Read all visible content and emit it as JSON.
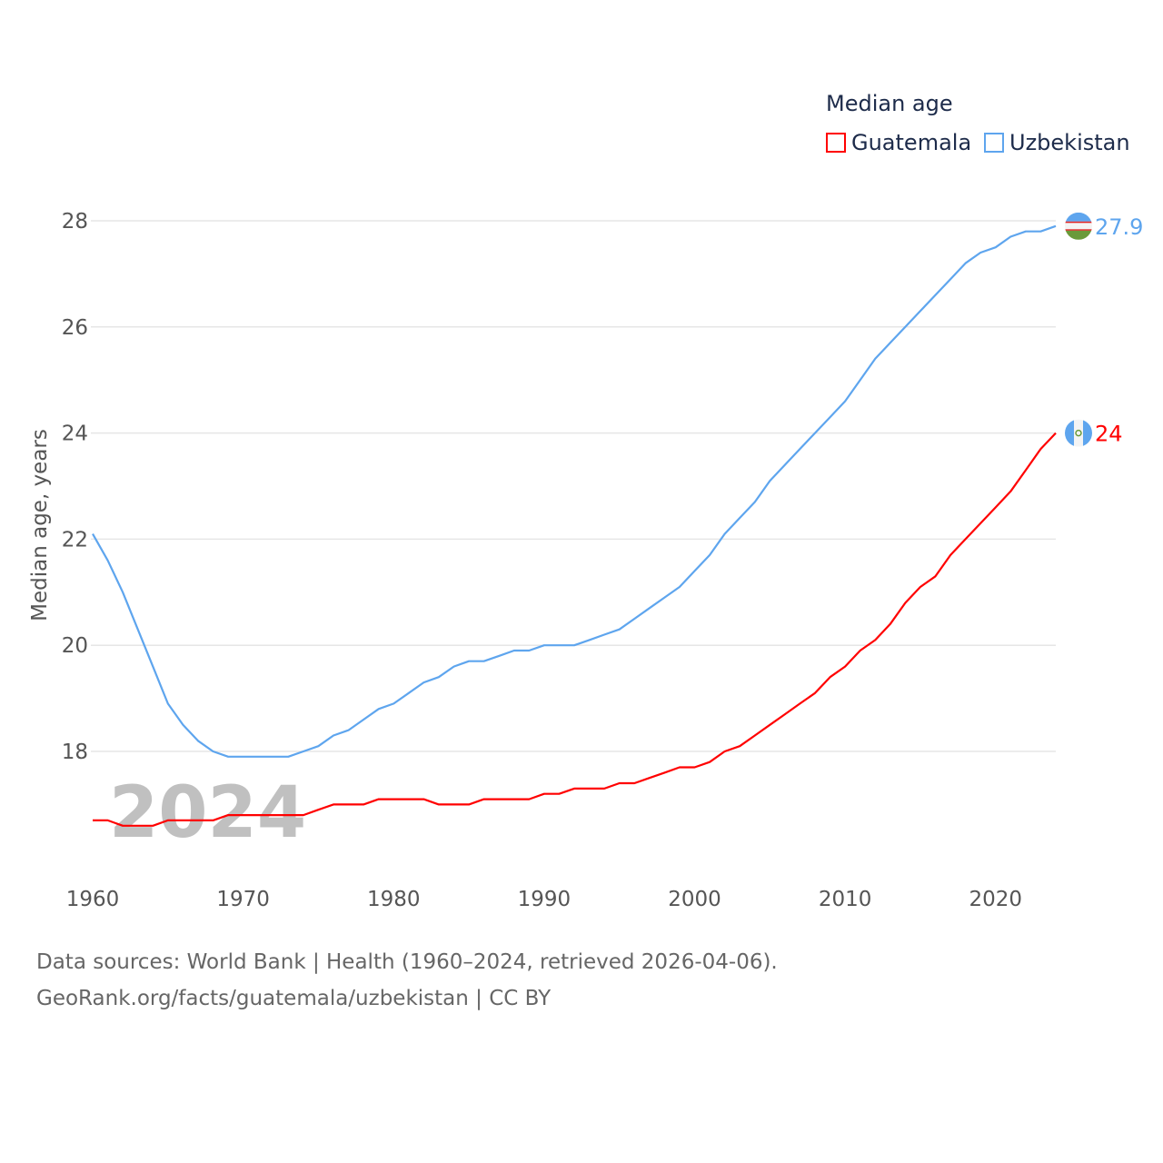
{
  "chart_data": {
    "type": "line",
    "title": "Median age",
    "xlabel": "",
    "ylabel": "Median age, years",
    "xlim": [
      1960,
      2024
    ],
    "ylim": [
      16.0,
      28.5
    ],
    "x_ticks": [
      1960,
      1970,
      1980,
      1990,
      2000,
      2010,
      2020
    ],
    "y_ticks": [
      18,
      20,
      22,
      24,
      26,
      28
    ],
    "grid": true,
    "legend_position": "top-right",
    "year_watermark": "2024",
    "x": [
      1960,
      1961,
      1962,
      1963,
      1964,
      1965,
      1966,
      1967,
      1968,
      1969,
      1970,
      1971,
      1972,
      1973,
      1974,
      1975,
      1976,
      1977,
      1978,
      1979,
      1980,
      1981,
      1982,
      1983,
      1984,
      1985,
      1986,
      1987,
      1988,
      1989,
      1990,
      1991,
      1992,
      1993,
      1994,
      1995,
      1996,
      1997,
      1998,
      1999,
      2000,
      2001,
      2002,
      2003,
      2004,
      2005,
      2006,
      2007,
      2008,
      2009,
      2010,
      2011,
      2012,
      2013,
      2014,
      2015,
      2016,
      2017,
      2018,
      2019,
      2020,
      2021,
      2022,
      2023,
      2024
    ],
    "series": [
      {
        "name": "Guatemala",
        "color": "#ff0000",
        "end_label": "24",
        "values": [
          16.7,
          16.7,
          16.6,
          16.6,
          16.6,
          16.7,
          16.7,
          16.7,
          16.7,
          16.8,
          16.8,
          16.8,
          16.8,
          16.8,
          16.8,
          16.9,
          17.0,
          17.0,
          17.0,
          17.1,
          17.1,
          17.1,
          17.1,
          17.0,
          17.0,
          17.0,
          17.1,
          17.1,
          17.1,
          17.1,
          17.2,
          17.2,
          17.3,
          17.3,
          17.3,
          17.4,
          17.4,
          17.5,
          17.6,
          17.7,
          17.7,
          17.8,
          18.0,
          18.1,
          18.3,
          18.5,
          18.7,
          18.9,
          19.1,
          19.4,
          19.6,
          19.9,
          20.1,
          20.4,
          20.8,
          21.1,
          21.3,
          21.7,
          22.0,
          22.3,
          22.6,
          22.9,
          23.3,
          23.7,
          24.0
        ]
      },
      {
        "name": "Uzbekistan",
        "color": "#5ea5ee",
        "end_label": "27.9",
        "values": [
          22.1,
          21.6,
          21.0,
          20.3,
          19.6,
          18.9,
          18.5,
          18.2,
          18.0,
          17.9,
          17.9,
          17.9,
          17.9,
          17.9,
          18.0,
          18.1,
          18.3,
          18.4,
          18.6,
          18.8,
          18.9,
          19.1,
          19.3,
          19.4,
          19.6,
          19.7,
          19.7,
          19.8,
          19.9,
          19.9,
          20.0,
          20.0,
          20.0,
          20.1,
          20.2,
          20.3,
          20.5,
          20.7,
          20.9,
          21.1,
          21.4,
          21.7,
          22.1,
          22.4,
          22.7,
          23.1,
          23.4,
          23.7,
          24.0,
          24.3,
          24.6,
          25.0,
          25.4,
          25.7,
          26.0,
          26.3,
          26.6,
          26.9,
          27.2,
          27.4,
          27.5,
          27.7,
          27.8,
          27.8,
          27.9
        ]
      }
    ]
  },
  "footer": {
    "line1": "Data sources: World Bank | Health (1960–2024, retrieved 2026-04-06).",
    "line2": "GeoRank.org/facts/guatemala/uzbekistan | CC BY"
  }
}
